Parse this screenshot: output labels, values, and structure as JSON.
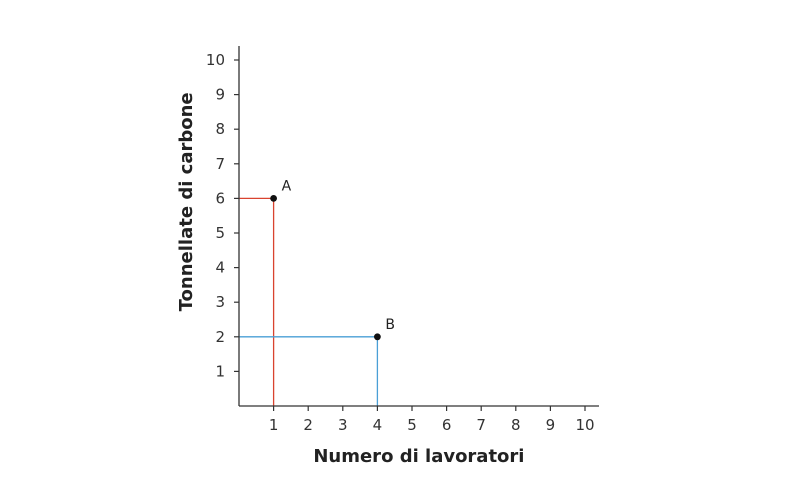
{
  "chart_data": {
    "type": "scatter",
    "title": "",
    "xlabel": "Numero di lavoratori",
    "ylabel": "Tonnellate di carbone",
    "xlim": [
      0,
      10
    ],
    "ylim": [
      0,
      10
    ],
    "x_ticks": [
      "1",
      "2",
      "3",
      "4",
      "5",
      "6",
      "7",
      "8",
      "9",
      "10"
    ],
    "y_ticks": [
      "1",
      "2",
      "3",
      "4",
      "5",
      "6",
      "7",
      "8",
      "9",
      "10"
    ],
    "grid": false,
    "points": [
      {
        "label": "A",
        "x": 1,
        "y": 6,
        "guide_color": "#d9432f"
      },
      {
        "label": "B",
        "x": 4,
        "y": 2,
        "guide_color": "#4a9fd6"
      }
    ],
    "axis_color": "#333333",
    "point_color": "#111111"
  }
}
